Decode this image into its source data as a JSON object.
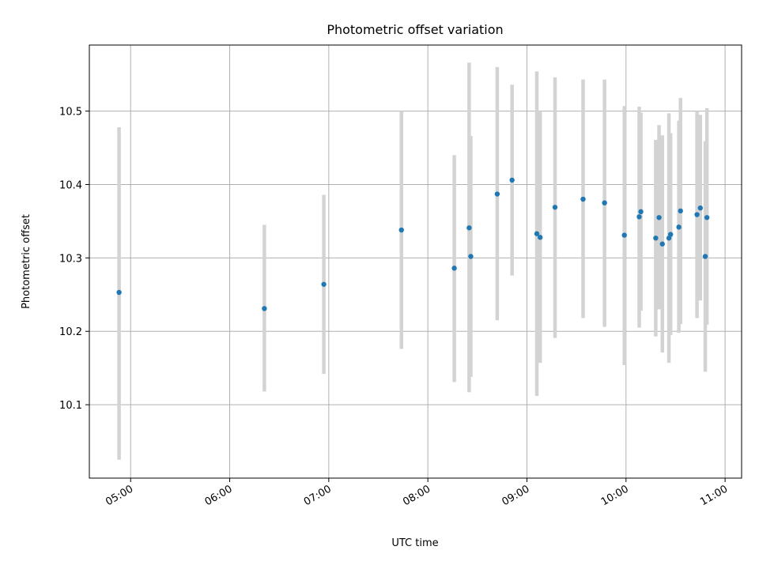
{
  "chart_data": {
    "type": "scatter",
    "title": "Photometric offset variation",
    "xlabel": "UTC time",
    "ylabel": "Photometric offset",
    "xlim": [
      "04:35",
      "11:10"
    ],
    "ylim": [
      10.0,
      10.59
    ],
    "grid": true,
    "x_ticks": [
      "05:00",
      "06:00",
      "07:00",
      "08:00",
      "09:00",
      "10:00",
      "11:00"
    ],
    "y_ticks": [
      10.1,
      10.2,
      10.3,
      10.4,
      10.5
    ],
    "y_tick_labels": [
      "10.1",
      "10.2",
      "10.3",
      "10.4",
      "10.5"
    ],
    "marker_color": "#1f77b4",
    "errorbar_color": "#d3d3d3",
    "points": [
      {
        "t": "04:53",
        "y": 10.253,
        "lo": 10.025,
        "hi": 10.478
      },
      {
        "t": "06:21",
        "y": 10.231,
        "lo": 10.118,
        "hi": 10.345
      },
      {
        "t": "06:57",
        "y": 10.264,
        "lo": 10.142,
        "hi": 10.386
      },
      {
        "t": "07:44",
        "y": 10.338,
        "lo": 10.176,
        "hi": 10.5
      },
      {
        "t": "08:16",
        "y": 10.286,
        "lo": 10.131,
        "hi": 10.44
      },
      {
        "t": "08:25",
        "y": 10.341,
        "lo": 10.117,
        "hi": 10.566
      },
      {
        "t": "08:26",
        "y": 10.302,
        "lo": 10.138,
        "hi": 10.466
      },
      {
        "t": "08:42",
        "y": 10.387,
        "lo": 10.215,
        "hi": 10.56
      },
      {
        "t": "08:51",
        "y": 10.406,
        "lo": 10.276,
        "hi": 10.536
      },
      {
        "t": "09:06",
        "y": 10.333,
        "lo": 10.112,
        "hi": 10.554
      },
      {
        "t": "09:08",
        "y": 10.328,
        "lo": 10.157,
        "hi": 10.499
      },
      {
        "t": "09:17",
        "y": 10.369,
        "lo": 10.191,
        "hi": 10.546
      },
      {
        "t": "09:34",
        "y": 10.38,
        "lo": 10.218,
        "hi": 10.543
      },
      {
        "t": "09:47",
        "y": 10.375,
        "lo": 10.206,
        "hi": 10.543
      },
      {
        "t": "09:59",
        "y": 10.331,
        "lo": 10.154,
        "hi": 10.507
      },
      {
        "t": "10:08",
        "y": 10.356,
        "lo": 10.205,
        "hi": 10.506
      },
      {
        "t": "10:09",
        "y": 10.363,
        "lo": 10.228,
        "hi": 10.498
      },
      {
        "t": "10:18",
        "y": 10.327,
        "lo": 10.193,
        "hi": 10.461
      },
      {
        "t": "10:20",
        "y": 10.355,
        "lo": 10.23,
        "hi": 10.481
      },
      {
        "t": "10:22",
        "y": 10.319,
        "lo": 10.171,
        "hi": 10.467
      },
      {
        "t": "10:26",
        "y": 10.327,
        "lo": 10.157,
        "hi": 10.497
      },
      {
        "t": "10:27",
        "y": 10.332,
        "lo": 10.195,
        "hi": 10.47
      },
      {
        "t": "10:32",
        "y": 10.342,
        "lo": 10.198,
        "hi": 10.487
      },
      {
        "t": "10:33",
        "y": 10.364,
        "lo": 10.21,
        "hi": 10.518
      },
      {
        "t": "10:43",
        "y": 10.359,
        "lo": 10.218,
        "hi": 10.5
      },
      {
        "t": "10:45",
        "y": 10.368,
        "lo": 10.242,
        "hi": 10.495
      },
      {
        "t": "10:48",
        "y": 10.302,
        "lo": 10.145,
        "hi": 10.459
      },
      {
        "t": "10:49",
        "y": 10.355,
        "lo": 10.209,
        "hi": 10.504
      }
    ]
  }
}
